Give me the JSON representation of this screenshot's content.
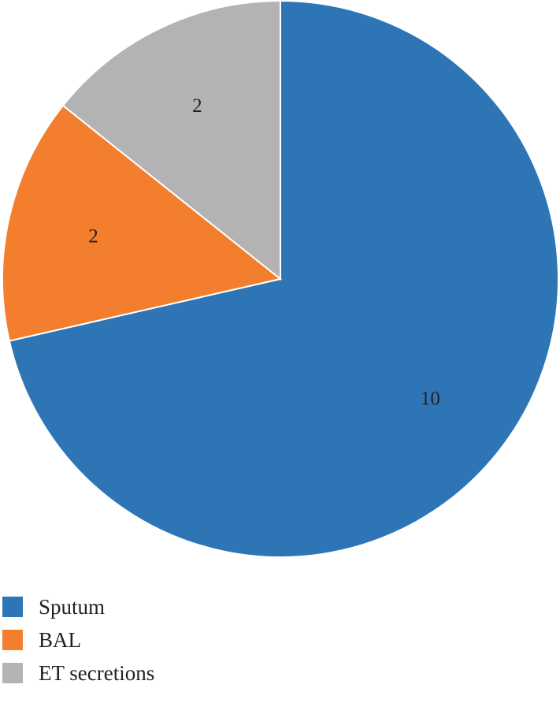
{
  "chart_data": {
    "type": "pie",
    "categories": [
      "Sputum",
      "BAL",
      "ET secretions"
    ],
    "values": [
      10,
      2,
      2
    ],
    "data_labels": [
      "10",
      "2",
      "2"
    ],
    "colors": [
      "#2e75b6",
      "#f37f2e",
      "#b3b3b3"
    ],
    "start_angle_deg": 0,
    "direction": "clockwise",
    "legend": {
      "position": "bottom-left",
      "entries": [
        "Sputum",
        "BAL",
        "ET secretions"
      ]
    },
    "title": "",
    "xlabel": "",
    "ylabel": ""
  }
}
